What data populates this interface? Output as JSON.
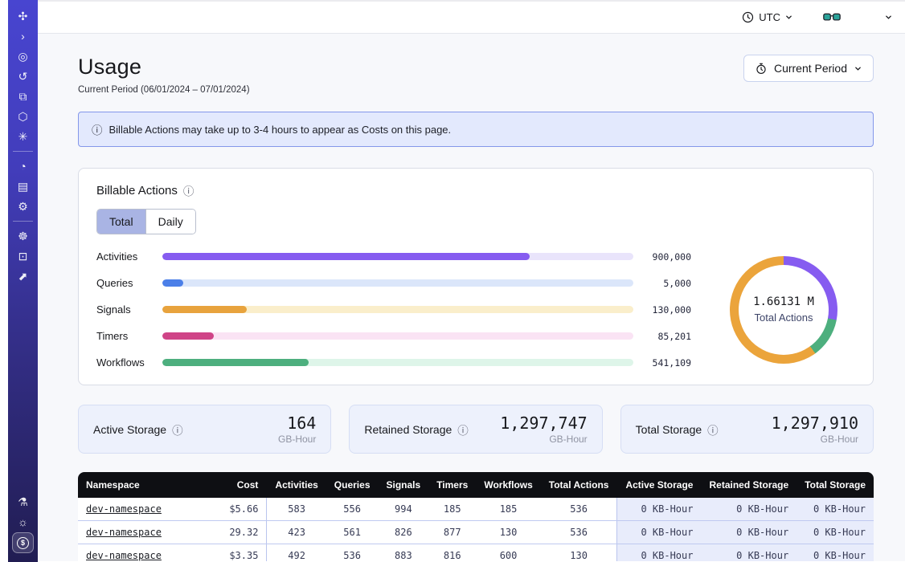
{
  "topbar": {
    "timezone": "UTC"
  },
  "page": {
    "title": "Usage",
    "subtitle": "Current Period (06/01/2024 – 07/01/2024)",
    "period_button": "Current Period"
  },
  "banner": {
    "text": "Billable Actions may take up to 3-4 hours to appear as Costs on this page."
  },
  "billable": {
    "title": "Billable Actions",
    "info_icon": "ⓘ",
    "tabs": [
      {
        "label": "Total"
      },
      {
        "label": "Daily"
      }
    ]
  },
  "chart_data": {
    "type": "bar",
    "title": "Billable Actions",
    "categories": [
      "Activities",
      "Queries",
      "Signals",
      "Timers",
      "Workflows"
    ],
    "values": [
      900000,
      5000,
      130000,
      85201,
      541109
    ],
    "value_labels": [
      "900,000",
      "5,000",
      "130,000",
      "85,201",
      "541,109"
    ],
    "bar_colors": [
      "#865cf0",
      "#4b7fe8",
      "#e8a33d",
      "#cf4487",
      "#4daf7e"
    ],
    "track_colors": [
      "#e9e4fb",
      "#dbe6fa",
      "#faeecb",
      "#fae3f4",
      "#def5e9"
    ],
    "fill_percents": [
      78,
      4.5,
      18,
      11,
      31
    ],
    "xlabel": "",
    "ylabel": "",
    "donut": {
      "type": "pie",
      "label": "1.66131 M",
      "sublabel": "Total Actions",
      "total_actions": 1661310,
      "segments": [
        {
          "name": "activities",
          "color": "#865cf0",
          "pct": 28
        },
        {
          "name": "workflows",
          "color": "#4daf7e",
          "pct": 12
        },
        {
          "name": "signals",
          "color": "#eba43b",
          "pct": 60
        }
      ]
    }
  },
  "storage_cards": [
    {
      "label": "Active Storage",
      "info_icon": "ⓘ",
      "value": "164",
      "unit": "GB-Hour"
    },
    {
      "label": "Retained Storage",
      "info_icon": "ⓘ",
      "value": "1,297,747",
      "unit": "GB-Hour"
    },
    {
      "label": "Total Storage",
      "info_icon": "ⓘ",
      "value": "1,297,910",
      "unit": "GB-Hour"
    }
  ],
  "table": {
    "columns": [
      "Namespace",
      "Cost",
      "Activities",
      "Queries",
      "Signals",
      "Timers",
      "Workflows",
      "Total Actions",
      "Active Storage",
      "Retained Storage",
      "Total Storage"
    ],
    "rows": [
      {
        "cells": [
          "dev-namespace",
          "$5.66",
          "583",
          "556",
          "994",
          "185",
          "185",
          "536",
          "0 KB-Hour",
          "0 KB-Hour",
          "0 KB-Hour"
        ]
      },
      {
        "cells": [
          "dev-namespace",
          "29.32",
          "423",
          "561",
          "826",
          "877",
          "130",
          "536",
          "0 KB-Hour",
          "0 KB-Hour",
          "0 KB-Hour"
        ]
      },
      {
        "cells": [
          "dev-namespace",
          "$3.35",
          "492",
          "536",
          "883",
          "816",
          "600",
          "130",
          "0 KB-Hour",
          "0 KB-Hour",
          "0 KB-Hour"
        ]
      }
    ]
  },
  "sidebar": {
    "icons_top": [
      "temporal-logo",
      "expand-sidebar",
      "namespaces",
      "schedules",
      "layers",
      "deployments",
      "nexus"
    ],
    "icons_mid": [
      "usage",
      "billing",
      "settings"
    ],
    "icons_support": [
      "support",
      "feedback",
      "getting-started"
    ],
    "icons_bottom": [
      "labs",
      "theme",
      "pricing"
    ]
  },
  "colors": {
    "sidebar_top": "#4845d0",
    "sidebar_bottom": "#211d52",
    "banner_bg": "#e3e9fd",
    "banner_border": "#8497ea",
    "tab_active_bg": "#a9b4e4",
    "storage_card_bg": "#edf1fc",
    "table_header_bg": "#0e0f13",
    "table_storage_col_bg": "#e8ecfb"
  }
}
